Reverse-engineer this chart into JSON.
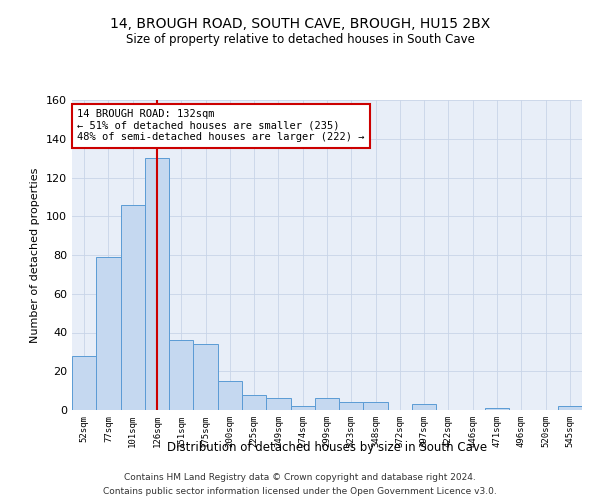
{
  "title_line1": "14, BROUGH ROAD, SOUTH CAVE, BROUGH, HU15 2BX",
  "title_line2": "Size of property relative to detached houses in South Cave",
  "xlabel": "Distribution of detached houses by size in South Cave",
  "ylabel": "Number of detached properties",
  "categories": [
    "52sqm",
    "77sqm",
    "101sqm",
    "126sqm",
    "151sqm",
    "175sqm",
    "200sqm",
    "225sqm",
    "249sqm",
    "274sqm",
    "299sqm",
    "323sqm",
    "348sqm",
    "372sqm",
    "397sqm",
    "422sqm",
    "446sqm",
    "471sqm",
    "496sqm",
    "520sqm",
    "545sqm"
  ],
  "values": [
    28,
    79,
    106,
    130,
    36,
    34,
    15,
    8,
    6,
    2,
    6,
    4,
    4,
    0,
    3,
    0,
    0,
    1,
    0,
    0,
    2
  ],
  "bar_color": "#c5d8f0",
  "bar_edge_color": "#5b9bd5",
  "vline_x_index": 3,
  "vline_color": "#cc0000",
  "ylim": [
    0,
    160
  ],
  "yticks": [
    0,
    20,
    40,
    60,
    80,
    100,
    120,
    140,
    160
  ],
  "annotation_text_line1": "14 BROUGH ROAD: 132sqm",
  "annotation_text_line2": "← 51% of detached houses are smaller (235)",
  "annotation_text_line3": "48% of semi-detached houses are larger (222) →",
  "annotation_box_color": "white",
  "annotation_border_color": "#cc0000",
  "footer_line1": "Contains HM Land Registry data © Crown copyright and database right 2024.",
  "footer_line2": "Contains public sector information licensed under the Open Government Licence v3.0.",
  "grid_color": "#c8d4e8",
  "axes_background": "#e8eef8"
}
